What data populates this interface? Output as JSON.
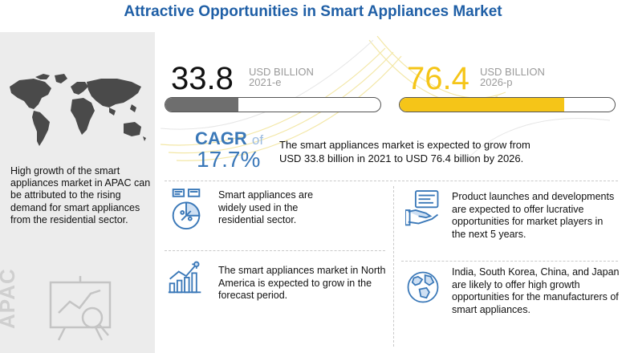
{
  "title": "Attractive Opportunities in Smart Appliances Market",
  "colors": {
    "title": "#1f5fa6",
    "bar_2021": "#6e6e6e",
    "bar_2026": "#f5c518",
    "cagr": "#3a78b8",
    "icon_blue": "#3a78b8"
  },
  "chart_data": {
    "type": "bar",
    "categories": [
      "2021-e",
      "2026-p"
    ],
    "values": [
      33.8,
      76.4
    ],
    "unit": "USD BILLION",
    "ylim": [
      0,
      100
    ],
    "cagr": "17.7%"
  },
  "metrics": [
    {
      "value": "33.8",
      "unit": "USD BILLION",
      "year": "2021-e"
    },
    {
      "value": "76.4",
      "unit": "USD BILLION",
      "year": "2026-p"
    }
  ],
  "cagr": {
    "label": "CAGR",
    "of": "of",
    "value": "17.7%",
    "description_line1": "The smart appliances market is expected to grow from",
    "description_line2": "USD 33.8 billion in 2021 to USD 76.4 billion by 2026."
  },
  "left_panel": {
    "text": "High growth of the smart appliances market in APAC can be attributed to the rising demand for smart appliances from the residential sector.",
    "region": "APAC"
  },
  "insights": [
    {
      "icon": "pie-chart-icon",
      "text": "Smart appliances are widely used in the residential sector."
    },
    {
      "icon": "growth-chart-icon",
      "text": "The smart appliances market in North America is expected to grow in the forecast period."
    },
    {
      "icon": "product-launch-icon",
      "text": "Product launches and developments are expected to offer lucrative opportunities for market players in the next 5 years."
    },
    {
      "icon": "globe-icon",
      "text": "India, South Korea, China, and Japan are likely to offer high growth opportunities for the manufacturers of smart appliances."
    }
  ]
}
